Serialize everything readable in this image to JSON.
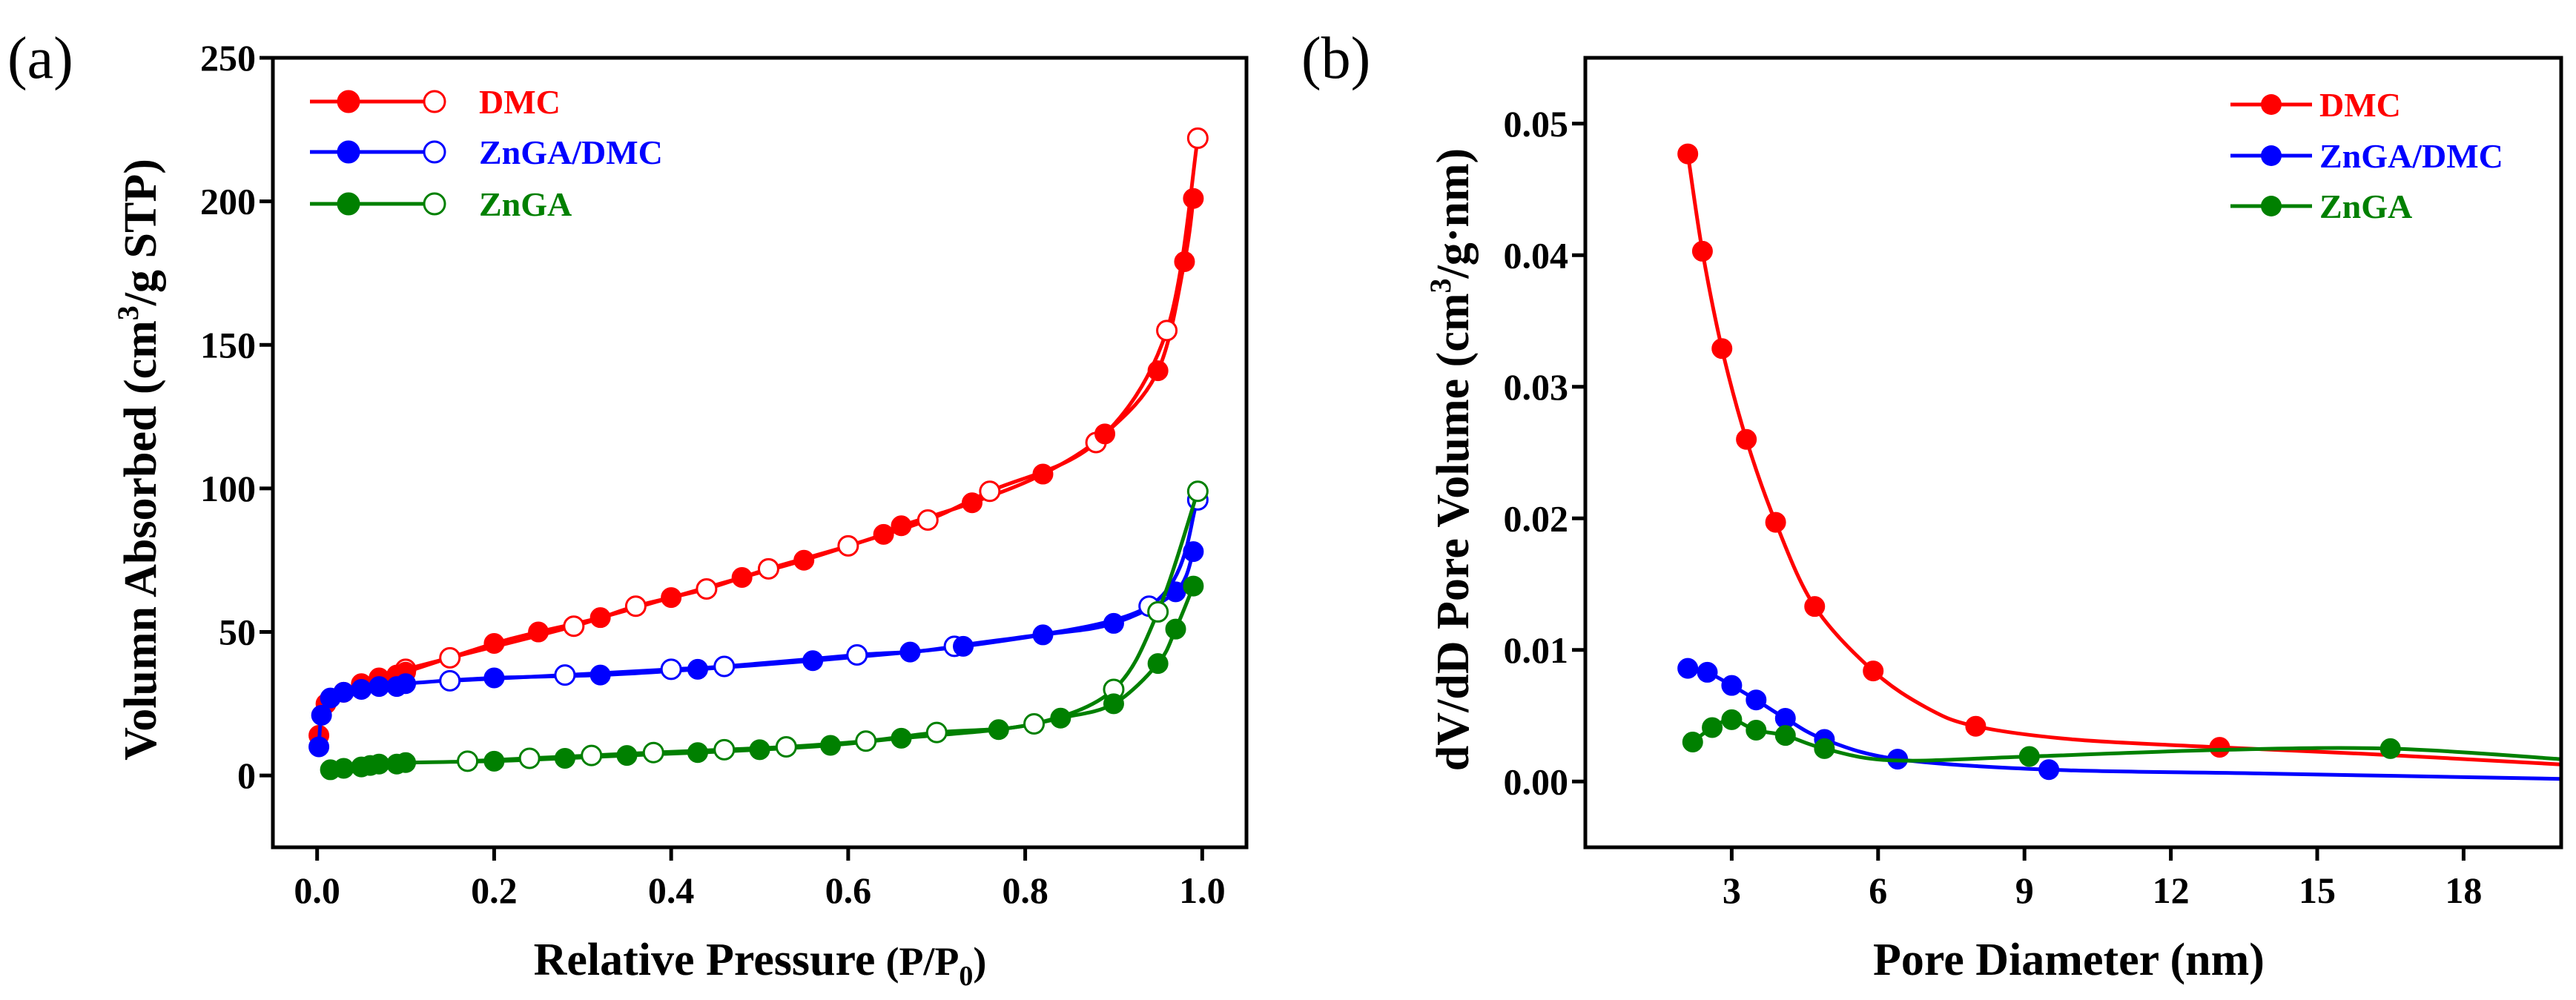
{
  "colors": {
    "DMC": "#ff0000",
    "ZnGA/DMC": "#0000ff",
    "ZnGA": "#008000",
    "axis": "#000000"
  },
  "chart_data": [
    {
      "type": "line",
      "panel_label": "(a)",
      "xlabel": "Relative Pressure",
      "xlabel_suffix": "(P/P",
      "xlabel_sub": "0",
      "xlabel_close": ")",
      "ylabel": "Volumn Absorbed (cm",
      "ylabel_sup": "3",
      "ylabel_end": "/g STP)",
      "xlim": [
        -0.05,
        1.05
      ],
      "ylim": [
        -25,
        250
      ],
      "xticks": [
        0.0,
        0.2,
        0.4,
        0.6,
        0.8,
        1.0
      ],
      "xtick_labels": [
        "0.0",
        "0.2",
        "0.4",
        "0.6",
        "0.8",
        "1.0"
      ],
      "yticks": [
        0,
        50,
        100,
        150,
        200,
        250
      ],
      "ytick_labels": [
        "0",
        "50",
        "100",
        "150",
        "200",
        "250"
      ],
      "legend_position": "top-left",
      "series": [
        {
          "name": "DMC",
          "adsorption": {
            "x": [
              0.002,
              0.01,
              0.03,
              0.05,
              0.07,
              0.09,
              0.1,
              0.2,
              0.25,
              0.32,
              0.4,
              0.48,
              0.55,
              0.64,
              0.66,
              0.74,
              0.82,
              0.89,
              0.95,
              0.98,
              0.99
            ],
            "y": [
              14,
              25,
              29,
              32,
              34,
              35,
              36,
              46,
              50,
              55,
              62,
              69,
              75,
              84,
              87,
              95,
              105,
              119,
              141,
              179,
              201
            ]
          },
          "desorption": {
            "x": [
              0.995,
              0.96,
              0.88,
              0.76,
              0.69,
              0.6,
              0.51,
              0.44,
              0.36,
              0.29,
              0.15,
              0.1
            ],
            "y": [
              222,
              155,
              116,
              99,
              89,
              80,
              72,
              65,
              59,
              52,
              41,
              37
            ]
          }
        },
        {
          "name": "ZnGA/DMC",
          "adsorption": {
            "x": [
              0.002,
              0.005,
              0.015,
              0.03,
              0.05,
              0.07,
              0.09,
              0.1,
              0.2,
              0.32,
              0.43,
              0.56,
              0.67,
              0.73,
              0.82,
              0.9,
              0.97,
              0.99
            ],
            "y": [
              10,
              21,
              27,
              29,
              30,
              31,
              31,
              32,
              34,
              35,
              37,
              40,
              43,
              45,
              49,
              53,
              64,
              78
            ]
          },
          "desorption": {
            "x": [
              0.995,
              0.94,
              0.72,
              0.61,
              0.46,
              0.4,
              0.28,
              0.15
            ],
            "y": [
              96,
              59,
              45,
              42,
              38,
              37,
              35,
              33
            ]
          }
        },
        {
          "name": "ZnGA",
          "adsorption": {
            "x": [
              0.015,
              0.03,
              0.05,
              0.06,
              0.07,
              0.09,
              0.1,
              0.2,
              0.28,
              0.35,
              0.43,
              0.5,
              0.58,
              0.66,
              0.77,
              0.84,
              0.9,
              0.95,
              0.97,
              0.99
            ],
            "y": [
              2,
              2.5,
              3,
              3.5,
              4,
              4,
              4.5,
              5,
              6,
              7,
              8,
              9,
              10.5,
              13,
              16,
              20,
              25,
              39,
              51,
              66
            ]
          },
          "desorption": {
            "x": [
              0.995,
              0.95,
              0.9,
              0.81,
              0.7,
              0.62,
              0.53,
              0.46,
              0.38,
              0.31,
              0.24,
              0.17
            ],
            "y": [
              99,
              57,
              30,
              18,
              15,
              12,
              10,
              9,
              8,
              7,
              6,
              5
            ]
          }
        }
      ]
    },
    {
      "type": "line",
      "panel_label": "(b)",
      "xlabel": "Pore Diameter (nm)",
      "ylabel": "dV/dD Pore Volume (cm",
      "ylabel_sup": "3",
      "ylabel_end": "/g·nm)",
      "xlim": [
        0,
        20
      ],
      "ylim": [
        -0.005,
        0.055
      ],
      "xticks": [
        3,
        6,
        9,
        12,
        15,
        18
      ],
      "xtick_labels": [
        "3",
        "6",
        "9",
        "12",
        "15",
        "18"
      ],
      "yticks": [
        0.0,
        0.01,
        0.02,
        0.03,
        0.04,
        0.05
      ],
      "ytick_labels": [
        "0.00",
        "0.01",
        "0.02",
        "0.03",
        "0.04",
        "0.05"
      ],
      "legend_position": "top-right",
      "series": [
        {
          "name": "DMC",
          "markers": {
            "x": [
              2.1,
              2.4,
              2.8,
              3.3,
              3.9,
              4.7,
              5.9,
              8.0,
              13.0
            ],
            "y": [
              0.0477,
              0.0403,
              0.0329,
              0.026,
              0.0197,
              0.0133,
              0.0084,
              0.0042,
              0.0026
            ]
          },
          "curve": {
            "x": [
              2.1,
              2.4,
              2.8,
              3.3,
              3.9,
              4.7,
              5.9,
              7.0,
              8.0,
              10.0,
              13.0,
              16.0,
              20.0
            ],
            "y": [
              0.0477,
              0.0403,
              0.0329,
              0.026,
              0.0197,
              0.0133,
              0.0084,
              0.0056,
              0.0042,
              0.0032,
              0.0026,
              0.0021,
              0.0013
            ]
          }
        },
        {
          "name": "ZnGA/DMC",
          "markers": {
            "x": [
              2.1,
              2.5,
              3.0,
              3.5,
              4.1,
              4.9,
              6.4,
              9.5
            ],
            "y": [
              0.0086,
              0.0083,
              0.0073,
              0.0062,
              0.0048,
              0.0032,
              0.0017,
              0.0009
            ]
          },
          "curve": {
            "x": [
              2.1,
              2.5,
              3.0,
              3.5,
              4.1,
              4.9,
              6.4,
              9.5,
              14.0,
              20.0
            ],
            "y": [
              0.0086,
              0.0083,
              0.0073,
              0.0062,
              0.0048,
              0.0032,
              0.0017,
              0.0009,
              0.0006,
              0.0002
            ]
          }
        },
        {
          "name": "ZnGA",
          "markers": {
            "x": [
              2.2,
              2.6,
              3.0,
              3.5,
              4.1,
              4.9,
              9.1,
              16.5
            ],
            "y": [
              0.003,
              0.0041,
              0.0047,
              0.0039,
              0.0035,
              0.0025,
              0.0019,
              0.0025
            ]
          },
          "curve": {
            "x": [
              2.2,
              2.6,
              3.0,
              3.5,
              4.1,
              4.9,
              6.3,
              9.1,
              13.0,
              16.5,
              20.0
            ],
            "y": [
              0.003,
              0.0041,
              0.0047,
              0.0039,
              0.0035,
              0.0025,
              0.0016,
              0.0019,
              0.0024,
              0.0025,
              0.0017
            ]
          }
        }
      ]
    }
  ]
}
